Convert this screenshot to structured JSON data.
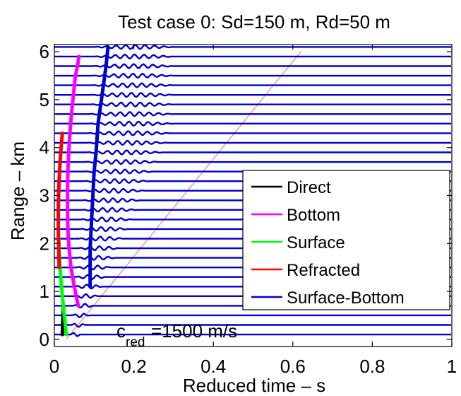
{
  "chart_data": {
    "type": "line",
    "title": "Test case 0:   Sd=150 m, Rd=50 m",
    "xlabel": "Reduced time  – s",
    "ylabel": "Range – km",
    "xlim": [
      0,
      1
    ],
    "ylim": [
      -0.15,
      6.15
    ],
    "xticks": [
      0,
      0.2,
      0.4,
      0.6,
      0.8,
      1
    ],
    "xtick_labels": [
      "0",
      "0.2",
      "0.4",
      "0.6",
      "0.8",
      "1"
    ],
    "yticks": [
      0,
      1,
      2,
      3,
      4,
      5,
      6
    ],
    "ytick_labels": [
      "0",
      "1",
      "2",
      "3",
      "4",
      "5",
      "6"
    ],
    "grid": false,
    "trace_ranges_km": [
      0.1,
      0.3,
      0.5,
      0.7,
      0.9,
      1.1,
      1.3,
      1.5,
      1.7,
      1.9,
      2.1,
      2.3,
      2.5,
      2.7,
      2.9,
      3.1,
      3.3,
      3.5,
      3.7,
      3.9,
      4.1,
      4.3,
      4.5,
      4.7,
      4.9,
      5.1,
      5.3,
      5.5,
      5.7,
      5.9,
      6.1
    ],
    "series": [
      {
        "name": "Direct",
        "color": "#000000",
        "x": [
          0.02,
          0.021,
          0.022,
          0.023
        ],
        "y": [
          0.1,
          0.3,
          0.5,
          0.7
        ]
      },
      {
        "name": "Bottom",
        "color": "#ff00ff",
        "x": [
          0.06,
          0.05,
          0.042,
          0.037,
          0.034,
          0.033,
          0.033,
          0.034,
          0.036,
          0.039,
          0.043,
          0.048,
          0.053,
          0.058,
          0.062
        ],
        "y": [
          0.7,
          1.1,
          1.5,
          1.9,
          2.3,
          2.7,
          3.1,
          3.5,
          3.9,
          4.3,
          4.7,
          5.1,
          5.5,
          5.7,
          5.9
        ]
      },
      {
        "name": "Surface",
        "color": "#00ff00",
        "x": [
          0.03,
          0.025,
          0.02,
          0.016,
          0.013,
          0.011
        ],
        "y": [
          0.1,
          0.5,
          0.9,
          1.3,
          1.7,
          2.1
        ]
      },
      {
        "name": "Refracted",
        "color": "#ff0000",
        "x": [
          0.012,
          0.011,
          0.01,
          0.01,
          0.011,
          0.013,
          0.016,
          0.02
        ],
        "y": [
          1.5,
          1.9,
          2.3,
          2.7,
          3.1,
          3.5,
          3.9,
          4.3
        ]
      },
      {
        "name": "Surface-Bottom",
        "color": "#0000cc",
        "x": [
          0.09,
          0.09,
          0.095,
          0.1,
          0.105,
          0.11,
          0.12,
          0.13,
          0.135
        ],
        "y": [
          1.1,
          1.9,
          2.7,
          3.5,
          3.9,
          4.5,
          5.1,
          5.7,
          6.1
        ]
      }
    ],
    "reference_line": {
      "color": "#ff6666",
      "x": [
        0.03,
        0.62
      ],
      "y": [
        0,
        6
      ]
    },
    "annotation": {
      "main": "c",
      "sub": "red",
      "rest": "=1500 m/s"
    },
    "legend": {
      "position": "right-middle",
      "entries": [
        {
          "label": "Direct",
          "color": "#000000"
        },
        {
          "label": "Bottom",
          "color": "#ff00ff"
        },
        {
          "label": "Surface",
          "color": "#00ff00"
        },
        {
          "label": "Refracted",
          "color": "#ff0000"
        },
        {
          "label": "Surface-Bottom",
          "color": "#0000cc"
        }
      ]
    }
  }
}
